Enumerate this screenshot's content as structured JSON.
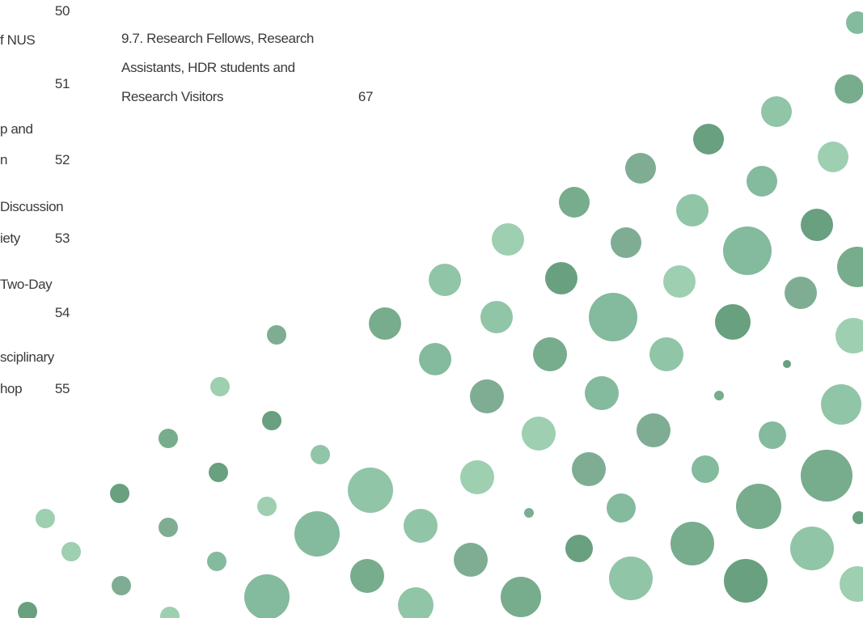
{
  "toc": {
    "left": [
      {
        "lines": [],
        "page": 50
      },
      {
        "lines": [
          "f NUS"
        ],
        "page": 51
      },
      {
        "lines": [
          "p and",
          "n"
        ],
        "page": 52
      },
      {
        "lines": [
          "Discussion",
          "iety"
        ],
        "page": 53
      },
      {
        "lines": [
          "Two-Day"
        ],
        "page": 54
      },
      {
        "lines": [
          "sciplinary",
          "hop"
        ],
        "page": 55
      }
    ],
    "middle": [
      {
        "lines": [
          "9.7. Research Fellows, Research",
          "Assistants, HDR students and",
          "Research Visitors"
        ],
        "page": 67
      }
    ]
  }
}
